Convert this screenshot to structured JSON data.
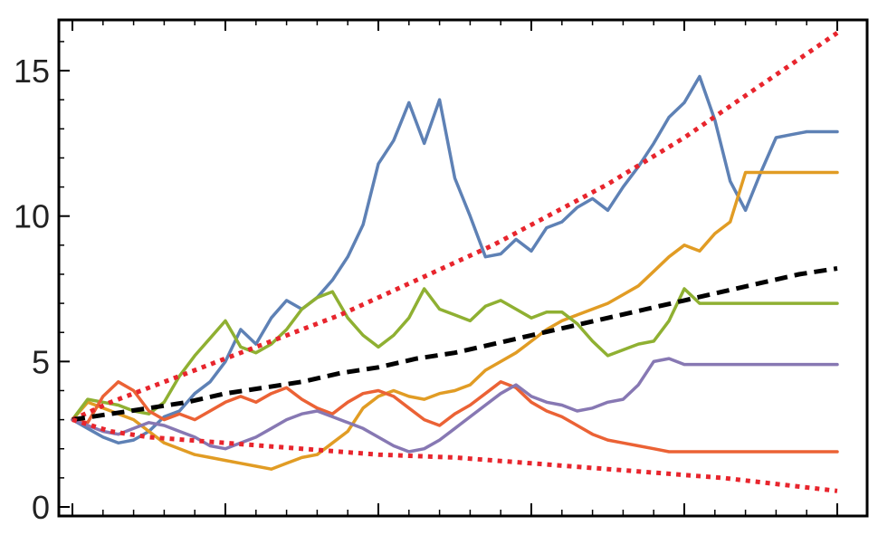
{
  "chart_data": {
    "type": "line",
    "title": "",
    "xlabel": "",
    "ylabel": "",
    "xlim": [
      0,
      100
    ],
    "ylim": [
      0,
      16
    ],
    "grid": false,
    "legend": "none",
    "y_ticks": [
      {
        "value": 0,
        "label": "0"
      },
      {
        "value": 5,
        "label": "5"
      },
      {
        "value": 10,
        "label": "10"
      },
      {
        "value": 15,
        "label": "15"
      }
    ],
    "x_ticks": [
      0,
      20,
      40,
      60,
      80,
      100
    ],
    "series": [
      {
        "color": "#5e81b5",
        "style": "solid",
        "x": [
          0,
          2,
          4,
          6,
          8,
          10,
          12,
          14,
          16,
          18,
          20,
          22,
          24,
          26,
          28,
          30,
          32,
          34,
          36,
          38,
          40,
          42,
          44,
          46,
          48,
          50,
          52,
          54,
          56,
          58,
          60,
          62,
          64,
          66,
          68,
          70,
          72,
          74,
          76,
          78,
          80,
          82,
          84,
          86,
          88,
          90,
          92,
          94,
          96,
          98,
          100
        ],
        "y": [
          3.0,
          2.7,
          2.4,
          2.2,
          2.3,
          2.6,
          3.1,
          3.3,
          3.9,
          4.3,
          5.0,
          6.1,
          5.6,
          6.5,
          7.1,
          6.8,
          7.2,
          7.8,
          8.6,
          9.7,
          11.8,
          12.6,
          13.9,
          12.5,
          14.0,
          11.3,
          10.0,
          8.6,
          8.7,
          9.2,
          8.8,
          9.6,
          9.8,
          10.3,
          10.6,
          10.2,
          11.0,
          11.7,
          12.5,
          13.4,
          13.9,
          14.8,
          13.3,
          11.2,
          10.2,
          11.5,
          12.7,
          12.8,
          12.9,
          12.9,
          12.9
        ]
      },
      {
        "color": "#e19c24",
        "style": "solid",
        "x": [
          0,
          2,
          4,
          6,
          8,
          10,
          12,
          14,
          16,
          18,
          20,
          22,
          24,
          26,
          28,
          30,
          32,
          34,
          36,
          38,
          40,
          42,
          44,
          46,
          48,
          50,
          52,
          54,
          56,
          58,
          60,
          62,
          64,
          66,
          68,
          70,
          72,
          74,
          76,
          78,
          80,
          82,
          84,
          86,
          88,
          90,
          92,
          94,
          96,
          98,
          100
        ],
        "y": [
          3.0,
          3.6,
          3.4,
          3.2,
          3.0,
          2.6,
          2.2,
          2.0,
          1.8,
          1.7,
          1.6,
          1.5,
          1.4,
          1.3,
          1.5,
          1.7,
          1.8,
          2.2,
          2.6,
          3.4,
          3.8,
          4.0,
          3.8,
          3.7,
          3.9,
          4.0,
          4.2,
          4.7,
          5.0,
          5.3,
          5.7,
          6.1,
          6.4,
          6.6,
          6.8,
          7.0,
          7.3,
          7.6,
          8.1,
          8.6,
          9.0,
          8.8,
          9.4,
          9.8,
          11.5,
          11.5,
          11.5,
          11.5,
          11.5,
          11.5,
          11.5
        ]
      },
      {
        "color": "#8fb032",
        "style": "solid",
        "x": [
          0,
          2,
          4,
          6,
          8,
          10,
          12,
          14,
          16,
          18,
          20,
          22,
          24,
          26,
          28,
          30,
          32,
          34,
          36,
          38,
          40,
          42,
          44,
          46,
          48,
          50,
          52,
          54,
          56,
          58,
          60,
          62,
          64,
          66,
          68,
          70,
          72,
          74,
          76,
          78,
          80,
          82,
          84,
          86,
          88,
          90,
          92,
          94,
          96,
          98,
          100
        ],
        "y": [
          3.0,
          3.7,
          3.6,
          3.5,
          3.3,
          3.2,
          3.6,
          4.5,
          5.2,
          5.8,
          6.4,
          5.5,
          5.3,
          5.6,
          6.1,
          6.8,
          7.2,
          7.4,
          6.5,
          5.9,
          5.5,
          5.9,
          6.5,
          7.5,
          6.8,
          6.6,
          6.4,
          6.9,
          7.1,
          6.8,
          6.5,
          6.7,
          6.7,
          6.3,
          5.7,
          5.2,
          5.4,
          5.6,
          5.7,
          6.4,
          7.5,
          7.0,
          7.0,
          7.0,
          7.0,
          7.0,
          7.0,
          7.0,
          7.0,
          7.0,
          7.0
        ]
      },
      {
        "color": "#eb6235",
        "style": "solid",
        "x": [
          0,
          2,
          4,
          6,
          8,
          10,
          12,
          14,
          16,
          18,
          20,
          22,
          24,
          26,
          28,
          30,
          32,
          34,
          36,
          38,
          40,
          42,
          44,
          46,
          48,
          50,
          52,
          54,
          56,
          58,
          60,
          62,
          64,
          66,
          68,
          70,
          72,
          74,
          76,
          78,
          80,
          82,
          84,
          86,
          88,
          90,
          92,
          94,
          96,
          98,
          100
        ],
        "y": [
          3.0,
          2.9,
          3.8,
          4.3,
          4.0,
          3.3,
          3.0,
          3.2,
          3.0,
          3.3,
          3.6,
          3.8,
          3.6,
          3.9,
          4.1,
          3.7,
          3.4,
          3.2,
          3.6,
          3.9,
          4.0,
          3.8,
          3.4,
          3.0,
          2.8,
          3.2,
          3.5,
          3.9,
          4.3,
          4.1,
          3.6,
          3.3,
          3.1,
          2.8,
          2.5,
          2.3,
          2.2,
          2.1,
          2.0,
          1.9,
          1.9,
          1.9,
          1.9,
          1.9,
          1.9,
          1.9,
          1.9,
          1.9,
          1.9,
          1.9,
          1.9
        ]
      },
      {
        "color": "#8778b3",
        "style": "solid",
        "x": [
          0,
          2,
          4,
          6,
          8,
          10,
          12,
          14,
          16,
          18,
          20,
          22,
          24,
          26,
          28,
          30,
          32,
          34,
          36,
          38,
          40,
          42,
          44,
          46,
          48,
          50,
          52,
          54,
          56,
          58,
          60,
          62,
          64,
          66,
          68,
          70,
          72,
          74,
          76,
          78,
          80,
          82,
          84,
          86,
          88,
          90,
          92,
          94,
          96,
          98,
          100
        ],
        "y": [
          3.0,
          2.8,
          2.6,
          2.5,
          2.7,
          2.9,
          2.8,
          2.6,
          2.4,
          2.1,
          2.0,
          2.2,
          2.4,
          2.7,
          3.0,
          3.2,
          3.3,
          3.1,
          2.9,
          2.7,
          2.4,
          2.1,
          1.9,
          2.0,
          2.3,
          2.7,
          3.1,
          3.5,
          3.9,
          4.2,
          3.8,
          3.6,
          3.5,
          3.3,
          3.4,
          3.6,
          3.7,
          4.2,
          5.0,
          5.1,
          4.9,
          4.9,
          4.9,
          4.9,
          4.9,
          4.9,
          4.9,
          4.9,
          4.9,
          4.9,
          4.9
        ]
      },
      {
        "color": "#e8252d",
        "style": "dotted",
        "x": [
          0,
          5,
          10,
          15,
          20,
          25,
          30,
          35,
          40,
          45,
          50,
          55,
          60,
          65,
          70,
          75,
          80,
          85,
          90,
          95,
          100
        ],
        "y": [
          3.0,
          3.6,
          4.1,
          4.6,
          5.1,
          5.6,
          6.1,
          6.6,
          7.2,
          7.8,
          8.4,
          9.0,
          9.7,
          10.4,
          11.1,
          11.9,
          12.7,
          13.6,
          14.5,
          15.4,
          16.3
        ]
      },
      {
        "color": "#000000",
        "style": "dashed",
        "x": [
          0,
          5,
          10,
          15,
          20,
          25,
          30,
          35,
          40,
          45,
          50,
          55,
          60,
          65,
          70,
          75,
          80,
          85,
          90,
          95,
          100
        ],
        "y": [
          3.0,
          3.2,
          3.4,
          3.6,
          3.9,
          4.1,
          4.3,
          4.6,
          4.8,
          5.1,
          5.3,
          5.6,
          5.9,
          6.2,
          6.5,
          6.8,
          7.1,
          7.4,
          7.7,
          8.0,
          8.2
        ]
      },
      {
        "color": "#e8252d",
        "style": "dotted",
        "x": [
          0,
          5,
          10,
          15,
          20,
          25,
          30,
          35,
          40,
          45,
          50,
          55,
          60,
          65,
          70,
          75,
          80,
          85,
          90,
          95,
          100
        ],
        "y": [
          3.0,
          2.6,
          2.4,
          2.3,
          2.2,
          2.1,
          2.0,
          1.9,
          1.8,
          1.75,
          1.7,
          1.6,
          1.5,
          1.4,
          1.3,
          1.2,
          1.1,
          1.0,
          0.85,
          0.7,
          0.55
        ]
      }
    ]
  }
}
